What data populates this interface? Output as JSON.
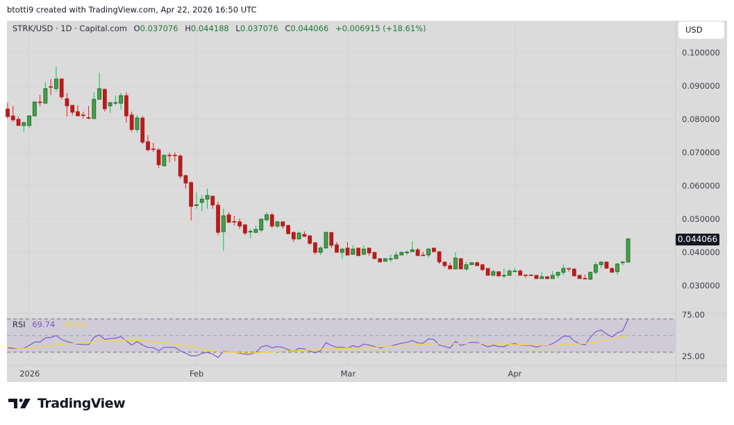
{
  "credit": "btotti9 created with TradingView.com, Apr 22, 2026 16:50 UTC",
  "legend": {
    "symbol": "STRK/USD · 1D · Capital.com",
    "open_label": "O",
    "open": "0.037076",
    "high_label": "H",
    "high": "0.044188",
    "low_label": "L",
    "low": "0.037076",
    "close_label": "C",
    "close": "0.044066",
    "change": "+0.006915 (+18.61%)"
  },
  "currency_button": "USD",
  "last_price_badge": "0.044066",
  "price_axis": [
    "0.100000",
    "0.090000",
    "0.080000",
    "0.070000",
    "0.060000",
    "0.050000",
    "0.040000",
    "0.030000"
  ],
  "rsi_axis": [
    "75.00",
    "25.00"
  ],
  "time_axis": [
    {
      "label": "2026",
      "index": 4
    },
    {
      "label": "Feb",
      "index": 35
    },
    {
      "label": "Mar",
      "index": 63
    },
    {
      "label": "Apr",
      "index": 94
    }
  ],
  "rsi_legend": {
    "name": "RSI",
    "value": "69.74",
    "ma_value": "49.94"
  },
  "logo_text": "TradingView",
  "colors": {
    "up": "#43a047",
    "up_border": "#1b5e20",
    "up_wick": "#00c853",
    "down": "#b71c1c",
    "down_wick": "#f01818",
    "rsi": "#7e57c2",
    "rsi_ma": "#f5d343",
    "panel": "#dbdbdb",
    "band": "#cfccd8"
  },
  "chart_data": {
    "type": "candlestick",
    "title": "STRK/USD · 1D · Capital.com",
    "ylim": [
      0.027,
      0.105
    ],
    "candles_ohlc": [
      [
        0.0831,
        0.085,
        0.0802,
        0.0808
      ],
      [
        0.081,
        0.084,
        0.0792,
        0.0798
      ],
      [
        0.08,
        0.0808,
        0.0781,
        0.0781
      ],
      [
        0.0781,
        0.0792,
        0.0762,
        0.079
      ],
      [
        0.0781,
        0.0812,
        0.0773,
        0.081
      ],
      [
        0.081,
        0.0852,
        0.081,
        0.0852
      ],
      [
        0.0852,
        0.0873,
        0.084,
        0.085
      ],
      [
        0.0848,
        0.0912,
        0.0848,
        0.0892
      ],
      [
        0.0898,
        0.0921,
        0.0873,
        0.0896
      ],
      [
        0.0892,
        0.0958,
        0.0883,
        0.0921
      ],
      [
        0.0921,
        0.0923,
        0.086,
        0.0867
      ],
      [
        0.0862,
        0.0879,
        0.0808,
        0.084
      ],
      [
        0.0842,
        0.0842,
        0.0812,
        0.0821
      ],
      [
        0.0823,
        0.0842,
        0.081,
        0.081
      ],
      [
        0.0813,
        0.0823,
        0.0802,
        0.0811
      ],
      [
        0.0805,
        0.084,
        0.08,
        0.0804
      ],
      [
        0.0802,
        0.0881,
        0.0802,
        0.086
      ],
      [
        0.086,
        0.094,
        0.086,
        0.0892
      ],
      [
        0.089,
        0.0892,
        0.0823,
        0.0831
      ],
      [
        0.084,
        0.085,
        0.0819,
        0.085
      ],
      [
        0.0849,
        0.0871,
        0.0842,
        0.085
      ],
      [
        0.0848,
        0.0879,
        0.0829,
        0.0871
      ],
      [
        0.0871,
        0.0881,
        0.079,
        0.081
      ],
      [
        0.0813,
        0.0823,
        0.0762,
        0.0769
      ],
      [
        0.0769,
        0.0813,
        0.076,
        0.0804
      ],
      [
        0.0804,
        0.081,
        0.0725,
        0.0731
      ],
      [
        0.0733,
        0.0752,
        0.0704,
        0.0708
      ],
      [
        0.0711,
        0.0729,
        0.0702,
        0.071
      ],
      [
        0.0708,
        0.0713,
        0.0654,
        0.0663
      ],
      [
        0.066,
        0.0694,
        0.066,
        0.0692
      ],
      [
        0.0692,
        0.07,
        0.0671,
        0.0691
      ],
      [
        0.0692,
        0.07,
        0.0673,
        0.069
      ],
      [
        0.069,
        0.0694,
        0.0621,
        0.0629
      ],
      [
        0.0631,
        0.0633,
        0.0592,
        0.0608
      ],
      [
        0.061,
        0.0613,
        0.0496,
        0.0538
      ],
      [
        0.0541,
        0.0581,
        0.0531,
        0.0543
      ],
      [
        0.055,
        0.0573,
        0.0523,
        0.056
      ],
      [
        0.056,
        0.0592,
        0.0531,
        0.0571
      ],
      [
        0.0569,
        0.0569,
        0.0531,
        0.0542
      ],
      [
        0.0542,
        0.0552,
        0.0452,
        0.046
      ],
      [
        0.0462,
        0.0531,
        0.0404,
        0.051
      ],
      [
        0.0513,
        0.0521,
        0.049,
        0.049
      ],
      [
        0.0493,
        0.051,
        0.0481,
        0.0491
      ],
      [
        0.0492,
        0.0502,
        0.0471,
        0.0479
      ],
      [
        0.0483,
        0.0483,
        0.0452,
        0.0458
      ],
      [
        0.0462,
        0.0471,
        0.0442,
        0.0463
      ],
      [
        0.046,
        0.0481,
        0.0458,
        0.0469
      ],
      [
        0.0467,
        0.05,
        0.046,
        0.05
      ],
      [
        0.0498,
        0.0521,
        0.0492,
        0.0513
      ],
      [
        0.0513,
        0.0519,
        0.0473,
        0.0479
      ],
      [
        0.0479,
        0.0494,
        0.0473,
        0.0492
      ],
      [
        0.0492,
        0.0492,
        0.0471,
        0.0479
      ],
      [
        0.0481,
        0.0483,
        0.0454,
        0.0456
      ],
      [
        0.046,
        0.0463,
        0.0431,
        0.044
      ],
      [
        0.044,
        0.0463,
        0.044,
        0.0458
      ],
      [
        0.0454,
        0.0463,
        0.0446,
        0.0448
      ],
      [
        0.045,
        0.045,
        0.0423,
        0.0427
      ],
      [
        0.0429,
        0.0431,
        0.0394,
        0.04
      ],
      [
        0.04,
        0.0419,
        0.0392,
        0.0413
      ],
      [
        0.0413,
        0.0463,
        0.041,
        0.046
      ],
      [
        0.046,
        0.046,
        0.0413,
        0.0421
      ],
      [
        0.0423,
        0.0431,
        0.04,
        0.04
      ],
      [
        0.04,
        0.0413,
        0.0381,
        0.041
      ],
      [
        0.0413,
        0.0431,
        0.039,
        0.0392
      ],
      [
        0.0394,
        0.0421,
        0.0394,
        0.041
      ],
      [
        0.0413,
        0.0413,
        0.039,
        0.039
      ],
      [
        0.0394,
        0.0421,
        0.0394,
        0.041
      ],
      [
        0.0413,
        0.0413,
        0.039,
        0.0398
      ],
      [
        0.04,
        0.0402,
        0.0381,
        0.0381
      ],
      [
        0.0381,
        0.0383,
        0.0371,
        0.0371
      ],
      [
        0.0373,
        0.0383,
        0.0373,
        0.0381
      ],
      [
        0.038,
        0.0394,
        0.0371,
        0.0381
      ],
      [
        0.0381,
        0.0402,
        0.0381,
        0.0392
      ],
      [
        0.0392,
        0.0402,
        0.0392,
        0.04
      ],
      [
        0.04,
        0.0406,
        0.0392,
        0.0401
      ],
      [
        0.0402,
        0.0433,
        0.0402,
        0.0408
      ],
      [
        0.0408,
        0.0413,
        0.039,
        0.039
      ],
      [
        0.0392,
        0.0402,
        0.0392,
        0.0391
      ],
      [
        0.0392,
        0.0413,
        0.0383,
        0.041
      ],
      [
        0.0413,
        0.0413,
        0.0402,
        0.0402
      ],
      [
        0.0402,
        0.0404,
        0.0365,
        0.0371
      ],
      [
        0.0371,
        0.0373,
        0.0354,
        0.036
      ],
      [
        0.036,
        0.0369,
        0.035,
        0.035
      ],
      [
        0.035,
        0.04,
        0.035,
        0.0383
      ],
      [
        0.0381,
        0.0383,
        0.035,
        0.035
      ],
      [
        0.035,
        0.0371,
        0.0344,
        0.0363
      ],
      [
        0.0363,
        0.0371,
        0.0363,
        0.0369
      ],
      [
        0.0369,
        0.0373,
        0.036,
        0.036
      ],
      [
        0.0363,
        0.0365,
        0.0344,
        0.0348
      ],
      [
        0.0352,
        0.0352,
        0.0331,
        0.0331
      ],
      [
        0.0331,
        0.0348,
        0.0331,
        0.0342
      ],
      [
        0.0342,
        0.0342,
        0.0329,
        0.0329
      ],
      [
        0.033,
        0.0352,
        0.0323,
        0.0331
      ],
      [
        0.0331,
        0.035,
        0.0331,
        0.0344
      ],
      [
        0.0343,
        0.0354,
        0.0342,
        0.0344
      ],
      [
        0.0344,
        0.035,
        0.0331,
        0.0331
      ],
      [
        0.0332,
        0.0333,
        0.0323,
        0.0331
      ],
      [
        0.0332,
        0.0333,
        0.0331,
        0.0331
      ],
      [
        0.0331,
        0.0331,
        0.0321,
        0.0321
      ],
      [
        0.0321,
        0.034,
        0.0321,
        0.0327
      ],
      [
        0.0327,
        0.0327,
        0.0319,
        0.0321
      ],
      [
        0.0321,
        0.0344,
        0.0321,
        0.0331
      ],
      [
        0.0331,
        0.0342,
        0.0321,
        0.034
      ],
      [
        0.034,
        0.0363,
        0.0331,
        0.0352
      ],
      [
        0.0352,
        0.0352,
        0.0342,
        0.0351
      ],
      [
        0.035,
        0.0352,
        0.0329,
        0.0329
      ],
      [
        0.0331,
        0.0333,
        0.0321,
        0.0321
      ],
      [
        0.0322,
        0.0333,
        0.0321,
        0.0321
      ],
      [
        0.0319,
        0.0342,
        0.0319,
        0.034
      ],
      [
        0.034,
        0.0371,
        0.0333,
        0.0363
      ],
      [
        0.0363,
        0.0373,
        0.0352,
        0.0371
      ],
      [
        0.0371,
        0.0373,
        0.0352,
        0.0352
      ],
      [
        0.0352,
        0.0354,
        0.034,
        0.034
      ],
      [
        0.0342,
        0.0369,
        0.0333,
        0.0365
      ],
      [
        0.0369,
        0.0373,
        0.036,
        0.0371
      ],
      [
        0.037076,
        0.044188,
        0.037076,
        0.044066
      ]
    ],
    "rsi": {
      "bands": [
        70,
        50,
        30
      ],
      "ylim": [
        25,
        75
      ],
      "values": [
        35.3,
        34.7,
        33.9,
        34.7,
        38.1,
        42.2,
        42.2,
        47.2,
        47.8,
        50.0,
        45.3,
        42.8,
        41.1,
        39.7,
        39.2,
        38.9,
        47.8,
        50.8,
        45.3,
        46.4,
        46.9,
        48.6,
        43.6,
        38.6,
        42.8,
        38.6,
        35.8,
        35.3,
        31.9,
        35.8,
        35.8,
        35.8,
        31.7,
        28.9,
        25.6,
        25.6,
        28.6,
        29.7,
        27.8,
        23.6,
        31.1,
        30.3,
        29.7,
        28.6,
        27.5,
        27.5,
        29.7,
        36.4,
        38.1,
        35.3,
        36.7,
        35.8,
        33.1,
        31.1,
        34.7,
        33.9,
        31.4,
        29.2,
        31.9,
        41.4,
        38.1,
        35.7,
        36.1,
        35.0,
        37.8,
        36.1,
        39.7,
        38.6,
        36.9,
        35.0,
        36.7,
        37.5,
        39.2,
        40.8,
        41.9,
        43.9,
        41.1,
        40.8,
        46.1,
        45.3,
        38.6,
        36.9,
        35.0,
        43.1,
        38.1,
        40.0,
        41.9,
        41.7,
        39.2,
        36.4,
        38.3,
        36.9,
        36.7,
        39.4,
        40.3,
        38.6,
        38.1,
        37.8,
        36.1,
        38.1,
        37.8,
        40.3,
        44.2,
        49.2,
        49.4,
        43.6,
        40.0,
        38.9,
        47.8,
        54.7,
        56.7,
        52.0,
        48.3,
        53.3,
        55.8,
        69.74
      ],
      "ma_points": [
        [
          0,
          33.1
        ],
        [
          5,
          35.3
        ],
        [
          9.3,
          39.4
        ],
        [
          15,
          41.4
        ],
        [
          19,
          44.7
        ],
        [
          21,
          45.0
        ],
        [
          25,
          43.6
        ],
        [
          29,
          41.7
        ],
        [
          33,
          37.5
        ],
        [
          38.5,
          31.1
        ],
        [
          44,
          28.9
        ],
        [
          47.5,
          29.7
        ],
        [
          53.5,
          31.9
        ],
        [
          61,
          34.7
        ],
        [
          67,
          35.3
        ],
        [
          71,
          37.2
        ],
        [
          80,
          40.3
        ],
        [
          88,
          40.3
        ],
        [
          97,
          38.6
        ],
        [
          101,
          38.1
        ],
        [
          107.6,
          40.8
        ],
        [
          112,
          45.6
        ],
        [
          115,
          49.94
        ]
      ]
    }
  }
}
